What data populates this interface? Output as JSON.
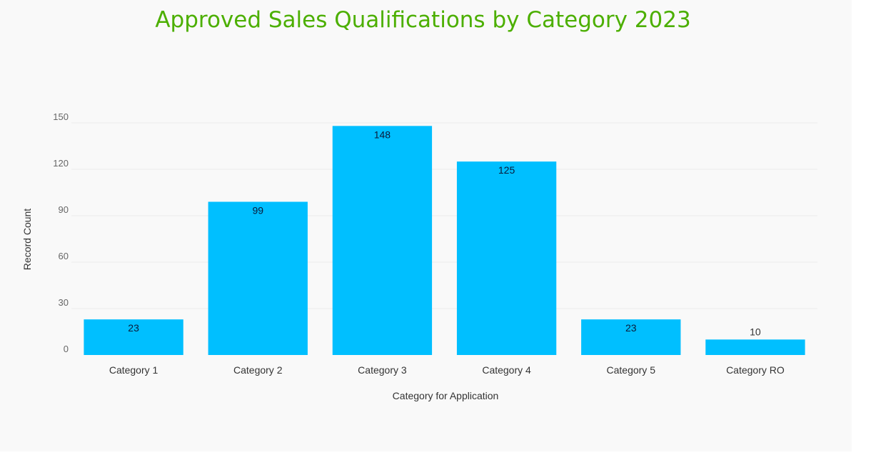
{
  "chart_data": {
    "type": "bar",
    "title": "Approved Sales Qualifications by Category 2023",
    "xlabel": "Category for Application",
    "ylabel": "Record Count",
    "categories": [
      "Category 1",
      "Category 2",
      "Category 3",
      "Category 4",
      "Category 5",
      "Category RO"
    ],
    "values": [
      23,
      99,
      148,
      125,
      23,
      10
    ],
    "data_labels": [
      "23",
      "99",
      "148",
      "125",
      "23",
      "10"
    ],
    "yticks": [
      0,
      30,
      60,
      90,
      120,
      150
    ],
    "ylim": [
      0,
      150
    ],
    "grid": true,
    "legend": "none",
    "colors": {
      "bar": "#00bfff",
      "title": "#4caf00",
      "grid": "#ebebeb"
    }
  }
}
